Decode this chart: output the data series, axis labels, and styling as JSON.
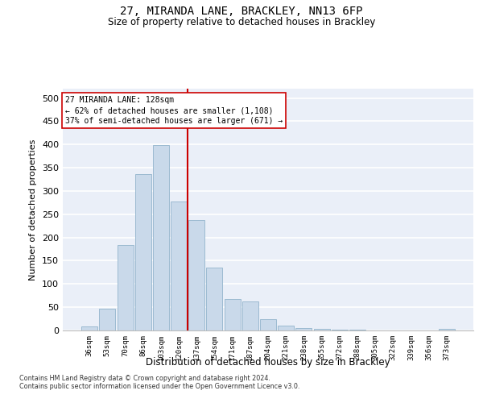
{
  "title": "27, MIRANDA LANE, BRACKLEY, NN13 6FP",
  "subtitle": "Size of property relative to detached houses in Brackley",
  "xlabel": "Distribution of detached houses by size in Brackley",
  "ylabel": "Number of detached properties",
  "categories": [
    "36sqm",
    "53sqm",
    "70sqm",
    "86sqm",
    "103sqm",
    "120sqm",
    "137sqm",
    "154sqm",
    "171sqm",
    "187sqm",
    "204sqm",
    "221sqm",
    "238sqm",
    "255sqm",
    "272sqm",
    "288sqm",
    "305sqm",
    "322sqm",
    "339sqm",
    "356sqm",
    "373sqm"
  ],
  "values": [
    8,
    46,
    184,
    337,
    398,
    277,
    238,
    135,
    67,
    62,
    25,
    11,
    5,
    3,
    2,
    1,
    0,
    0,
    0,
    0,
    3
  ],
  "bar_color": "#c9d9ea",
  "bar_edge_color": "#92b4cc",
  "vline_color": "#cc0000",
  "vline_x": 5.47,
  "annotation_line1": "27 MIRANDA LANE: 128sqm",
  "annotation_line2": "← 62% of detached houses are smaller (1,108)",
  "annotation_line3": "37% of semi-detached houses are larger (671) →",
  "annotation_box_facecolor": "#ffffff",
  "annotation_box_edgecolor": "#cc0000",
  "background_color": "#eaeff8",
  "grid_color": "#ffffff",
  "ylim": [
    0,
    520
  ],
  "yticks": [
    0,
    50,
    100,
    150,
    200,
    250,
    300,
    350,
    400,
    450,
    500
  ],
  "footer_line1": "Contains HM Land Registry data © Crown copyright and database right 2024.",
  "footer_line2": "Contains public sector information licensed under the Open Government Licence v3.0."
}
